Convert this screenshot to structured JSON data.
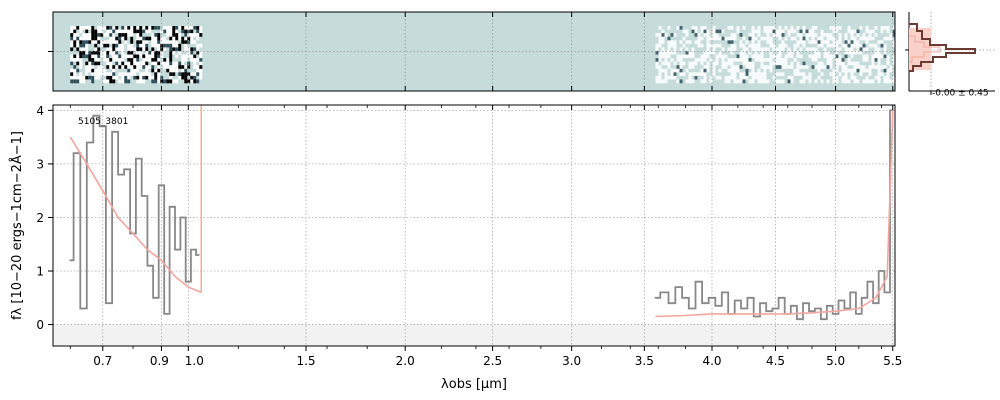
{
  "chart_data": [
    {
      "type": "heatmap",
      "panel": "2d-spectrum",
      "colormap": [
        "#ffffff",
        "#c5dcdb",
        "#2f4f5c",
        "#000000"
      ],
      "background_color": "#c5dcdb",
      "x_range_um": [
        0.55,
        5.52
      ],
      "covered_segments_um": [
        [
          0.6,
          1.05
        ],
        [
          3.58,
          5.5
        ]
      ],
      "grid": true
    },
    {
      "type": "line",
      "panel": "1d-spectrum",
      "object_id": "5105_3801",
      "xlabel": "λobs [μm]",
      "ylabel": "fλ [10−20 ergs−1cm−2Å−1]",
      "x_scale": "power",
      "xlim": [
        0.55,
        5.52
      ],
      "ylim": [
        -0.4,
        4.1
      ],
      "x_ticks": [
        0.7,
        0.9,
        1.0,
        1.5,
        2.0,
        2.5,
        3.0,
        3.5,
        4.0,
        4.5,
        5.0,
        5.5
      ],
      "x_tick_labels": [
        "0.7",
        "0.9",
        "1.0",
        "1.5",
        "2.0",
        "2.5",
        "3.0",
        "3.5",
        "4.0",
        "4.5",
        "5.0",
        "5.5"
      ],
      "y_ticks": [
        0,
        1,
        2,
        3,
        4
      ],
      "y_tick_labels": [
        "0",
        "1",
        "2",
        "3",
        "4"
      ],
      "grid": true,
      "colors": {
        "data": "#888888",
        "model": "#f3a6a0",
        "zero_band": "#f2f2f2"
      },
      "series": [
        {
          "role": "data",
          "segments": [
            {
              "x": [
                0.6,
                0.62,
                0.64,
                0.66,
                0.68,
                0.7,
                0.72,
                0.74,
                0.76,
                0.78,
                0.8,
                0.82,
                0.84,
                0.86,
                0.88,
                0.9,
                0.92,
                0.94,
                0.96,
                0.98,
                1.0,
                1.02,
                1.04
              ],
              "y": [
                1.2,
                3.2,
                0.3,
                3.4,
                3.9,
                3.7,
                0.4,
                3.6,
                2.8,
                2.9,
                1.7,
                3.1,
                2.4,
                1.1,
                0.5,
                2.6,
                0.2,
                2.2,
                1.4,
                2.0,
                0.8,
                1.4,
                1.3
              ]
            },
            {
              "x": [
                3.58,
                3.65,
                3.7,
                3.75,
                3.8,
                3.85,
                3.9,
                3.95,
                4.0,
                4.05,
                4.1,
                4.15,
                4.2,
                4.25,
                4.3,
                4.35,
                4.4,
                4.45,
                4.5,
                4.55,
                4.6,
                4.65,
                4.7,
                4.75,
                4.8,
                4.85,
                4.9,
                4.95,
                5.0,
                5.05,
                5.1,
                5.15,
                5.2,
                5.25,
                5.3,
                5.35,
                5.4,
                5.45,
                5.5
              ],
              "y": [
                0.5,
                0.6,
                0.4,
                0.7,
                0.5,
                0.3,
                0.8,
                0.4,
                0.5,
                0.35,
                0.6,
                0.2,
                0.45,
                0.3,
                0.5,
                0.15,
                0.4,
                0.25,
                0.3,
                0.5,
                0.2,
                0.35,
                0.1,
                0.4,
                0.25,
                0.3,
                0.1,
                0.35,
                0.2,
                0.45,
                0.3,
                0.6,
                0.2,
                0.5,
                0.8,
                0.4,
                1.0,
                0.6,
                4.0
              ]
            }
          ]
        },
        {
          "role": "model",
          "segments": [
            {
              "x": [
                0.6,
                0.65,
                0.7,
                0.75,
                0.8,
                0.85,
                0.9,
                0.95,
                1.0,
                1.05
              ],
              "y": [
                3.5,
                3.0,
                2.5,
                2.0,
                1.7,
                1.4,
                1.2,
                0.9,
                0.7,
                0.6
              ]
            },
            {
              "x": [
                3.58,
                3.8,
                4.0,
                4.2,
                4.4,
                4.6,
                4.8,
                5.0,
                5.2,
                5.35,
                5.45,
                5.5
              ],
              "y": [
                0.15,
                0.17,
                0.2,
                0.2,
                0.2,
                0.2,
                0.22,
                0.25,
                0.3,
                0.5,
                0.9,
                4.0
              ]
            }
          ]
        }
      ]
    },
    {
      "type": "line",
      "panel": "histogram",
      "label": "-0.00 ± 0.45",
      "colors": {
        "line": "#6b3a32",
        "band": "#fad1c8"
      }
    }
  ]
}
